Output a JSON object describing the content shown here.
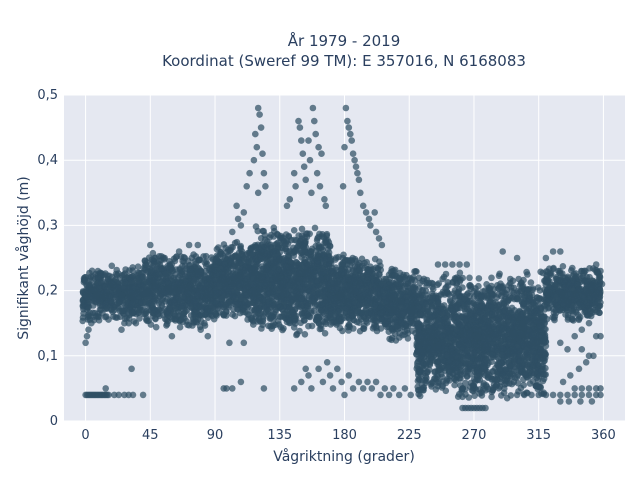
{
  "chart_data": {
    "type": "scatter",
    "title_line1": "År 1979 - 2019",
    "title_line2": "Koordinat (Sweref 99 TM): E 357016, N 6168083",
    "xlabel": "Vågriktning (grader)",
    "ylabel": "Signifikant våghöjd (m)",
    "xlim": [
      -15,
      375
    ],
    "ylim": [
      0,
      0.5
    ],
    "x_ticks": [
      0,
      45,
      90,
      135,
      180,
      225,
      270,
      315,
      360
    ],
    "x_tick_labels": [
      "0",
      "45",
      "90",
      "135",
      "180",
      "225",
      "270",
      "315",
      "360"
    ],
    "y_ticks": [
      0,
      0.1,
      0.2,
      0.3,
      0.4,
      0.5
    ],
    "y_tick_labels": [
      "0",
      "0,1",
      "0,2",
      "0,3",
      "0,4",
      "0,5"
    ],
    "grid": true,
    "legend": "none",
    "marker_color": "#2f4f64",
    "plot_bg_color": "#e5e8f1",
    "density_bands": [
      {
        "x_range": [
          -2,
          40
        ],
        "y_range": [
          0.15,
          0.24
        ]
      },
      {
        "x_range": [
          40,
          90
        ],
        "y_range": [
          0.14,
          0.26
        ]
      },
      {
        "x_range": [
          90,
          115
        ],
        "y_range": [
          0.15,
          0.28
        ]
      },
      {
        "x_range": [
          115,
          170
        ],
        "y_range": [
          0.13,
          0.3
        ]
      },
      {
        "x_range": [
          170,
          205
        ],
        "y_range": [
          0.13,
          0.26
        ]
      },
      {
        "x_range": [
          205,
          230
        ],
        "y_range": [
          0.12,
          0.24
        ]
      },
      {
        "x_range": [
          230,
          320
        ],
        "y_range": [
          0.03,
          0.23
        ]
      },
      {
        "x_range": [
          320,
          358
        ],
        "y_range": [
          0.15,
          0.24
        ]
      }
    ],
    "points": [
      [
        120,
        0.48
      ],
      [
        121,
        0.47
      ],
      [
        122,
        0.45
      ],
      [
        118,
        0.44
      ],
      [
        119,
        0.42
      ],
      [
        123,
        0.41
      ],
      [
        117,
        0.4
      ],
      [
        114,
        0.38
      ],
      [
        112,
        0.36
      ],
      [
        124,
        0.38
      ],
      [
        125,
        0.36
      ],
      [
        120,
        0.35
      ],
      [
        148,
        0.46
      ],
      [
        149,
        0.45
      ],
      [
        150,
        0.43
      ],
      [
        151,
        0.41
      ],
      [
        155,
        0.43
      ],
      [
        156,
        0.4
      ],
      [
        158,
        0.48
      ],
      [
        159,
        0.46
      ],
      [
        160,
        0.44
      ],
      [
        162,
        0.42
      ],
      [
        164,
        0.41
      ],
      [
        152,
        0.39
      ],
      [
        145,
        0.38
      ],
      [
        146,
        0.36
      ],
      [
        153,
        0.37
      ],
      [
        157,
        0.35
      ],
      [
        142,
        0.34
      ],
      [
        140,
        0.33
      ],
      [
        161,
        0.38
      ],
      [
        163,
        0.36
      ],
      [
        166,
        0.34
      ],
      [
        167,
        0.33
      ],
      [
        181,
        0.48
      ],
      [
        182,
        0.46
      ],
      [
        183,
        0.45
      ],
      [
        184,
        0.44
      ],
      [
        185,
        0.43
      ],
      [
        180,
        0.42
      ],
      [
        186,
        0.41
      ],
      [
        187,
        0.4
      ],
      [
        188,
        0.39
      ],
      [
        189,
        0.38
      ],
      [
        190,
        0.37
      ],
      [
        179,
        0.36
      ],
      [
        191,
        0.35
      ],
      [
        193,
        0.33
      ],
      [
        195,
        0.32
      ],
      [
        197,
        0.31
      ],
      [
        198,
        0.3
      ],
      [
        201,
        0.32
      ],
      [
        202,
        0.29
      ],
      [
        204,
        0.28
      ],
      [
        206,
        0.27
      ],
      [
        105,
        0.33
      ],
      [
        106,
        0.31
      ],
      [
        108,
        0.3
      ],
      [
        102,
        0.29
      ],
      [
        110,
        0.32
      ],
      [
        0,
        0.04
      ],
      [
        1,
        0.04
      ],
      [
        2,
        0.04
      ],
      [
        3,
        0.04
      ],
      [
        4,
        0.04
      ],
      [
        5,
        0.04
      ],
      [
        6,
        0.04
      ],
      [
        7,
        0.04
      ],
      [
        8,
        0.04
      ],
      [
        9,
        0.04
      ],
      [
        10,
        0.04
      ],
      [
        11,
        0.04
      ],
      [
        12,
        0.04
      ],
      [
        13,
        0.04
      ],
      [
        14,
        0.04
      ],
      [
        15,
        0.04
      ],
      [
        16,
        0.04
      ],
      [
        20,
        0.04
      ],
      [
        23,
        0.04
      ],
      [
        27,
        0.04
      ],
      [
        30,
        0.04
      ],
      [
        33,
        0.04
      ],
      [
        40,
        0.04
      ],
      [
        14,
        0.05
      ],
      [
        0,
        0.12
      ],
      [
        1,
        0.13
      ],
      [
        2,
        0.14
      ],
      [
        4,
        0.15
      ],
      [
        6,
        0.16
      ],
      [
        25,
        0.14
      ],
      [
        27,
        0.15
      ],
      [
        32,
        0.08
      ],
      [
        96,
        0.05
      ],
      [
        98,
        0.05
      ],
      [
        102,
        0.05
      ],
      [
        108,
        0.06
      ],
      [
        124,
        0.05
      ],
      [
        145,
        0.05
      ],
      [
        150,
        0.06
      ],
      [
        153,
        0.08
      ],
      [
        155,
        0.07
      ],
      [
        157,
        0.05
      ],
      [
        162,
        0.08
      ],
      [
        165,
        0.06
      ],
      [
        168,
        0.09
      ],
      [
        170,
        0.07
      ],
      [
        172,
        0.05
      ],
      [
        175,
        0.08
      ],
      [
        178,
        0.06
      ],
      [
        180,
        0.04
      ],
      [
        183,
        0.07
      ],
      [
        186,
        0.05
      ],
      [
        190,
        0.06
      ],
      [
        193,
        0.05
      ],
      [
        196,
        0.06
      ],
      [
        199,
        0.05
      ],
      [
        202,
        0.06
      ],
      [
        205,
        0.04
      ],
      [
        208,
        0.05
      ],
      [
        211,
        0.04
      ],
      [
        214,
        0.05
      ],
      [
        218,
        0.04
      ],
      [
        222,
        0.05
      ],
      [
        226,
        0.04
      ],
      [
        262,
        0.02
      ],
      [
        264,
        0.02
      ],
      [
        266,
        0.02
      ],
      [
        268,
        0.02
      ],
      [
        270,
        0.02
      ],
      [
        272,
        0.02
      ],
      [
        274,
        0.02
      ],
      [
        276,
        0.02
      ],
      [
        278,
        0.02
      ],
      [
        300,
        0.04
      ],
      [
        305,
        0.04
      ],
      [
        310,
        0.04
      ],
      [
        315,
        0.04
      ],
      [
        320,
        0.04
      ],
      [
        325,
        0.04
      ],
      [
        330,
        0.04
      ],
      [
        335,
        0.04
      ],
      [
        340,
        0.04
      ],
      [
        345,
        0.04
      ],
      [
        350,
        0.04
      ],
      [
        355,
        0.04
      ],
      [
        358,
        0.04
      ],
      [
        340,
        0.05
      ],
      [
        345,
        0.05
      ],
      [
        350,
        0.05
      ],
      [
        355,
        0.05
      ],
      [
        358,
        0.05
      ],
      [
        332,
        0.06
      ],
      [
        337,
        0.07
      ],
      [
        343,
        0.08
      ],
      [
        348,
        0.09
      ],
      [
        353,
        0.1
      ],
      [
        330,
        0.03
      ],
      [
        336,
        0.03
      ],
      [
        344,
        0.03
      ],
      [
        352,
        0.03
      ],
      [
        330,
        0.12
      ],
      [
        335,
        0.11
      ],
      [
        340,
        0.13
      ],
      [
        345,
        0.11
      ],
      [
        350,
        0.1
      ],
      [
        345,
        0.14
      ],
      [
        350,
        0.15
      ],
      [
        355,
        0.13
      ],
      [
        358,
        0.13
      ],
      [
        20,
        0.17
      ],
      [
        24,
        0.16
      ],
      [
        30,
        0.15
      ],
      [
        35,
        0.15
      ],
      [
        60,
        0.13
      ],
      [
        80,
        0.14
      ],
      [
        85,
        0.13
      ],
      [
        100,
        0.12
      ],
      [
        110,
        0.12
      ],
      [
        355,
        0.24
      ],
      [
        358,
        0.23
      ],
      [
        357,
        0.22
      ],
      [
        359,
        0.21
      ],
      [
        320,
        0.25
      ],
      [
        325,
        0.26
      ],
      [
        330,
        0.26
      ],
      [
        300,
        0.25
      ],
      [
        290,
        0.26
      ],
      [
        245,
        0.24
      ],
      [
        250,
        0.24
      ],
      [
        255,
        0.24
      ],
      [
        260,
        0.24
      ],
      [
        265,
        0.24
      ],
      [
        45,
        0.27
      ],
      [
        48,
        0.25
      ],
      [
        55,
        0.25
      ],
      [
        65,
        0.26
      ],
      [
        72,
        0.27
      ],
      [
        78,
        0.27
      ]
    ]
  }
}
